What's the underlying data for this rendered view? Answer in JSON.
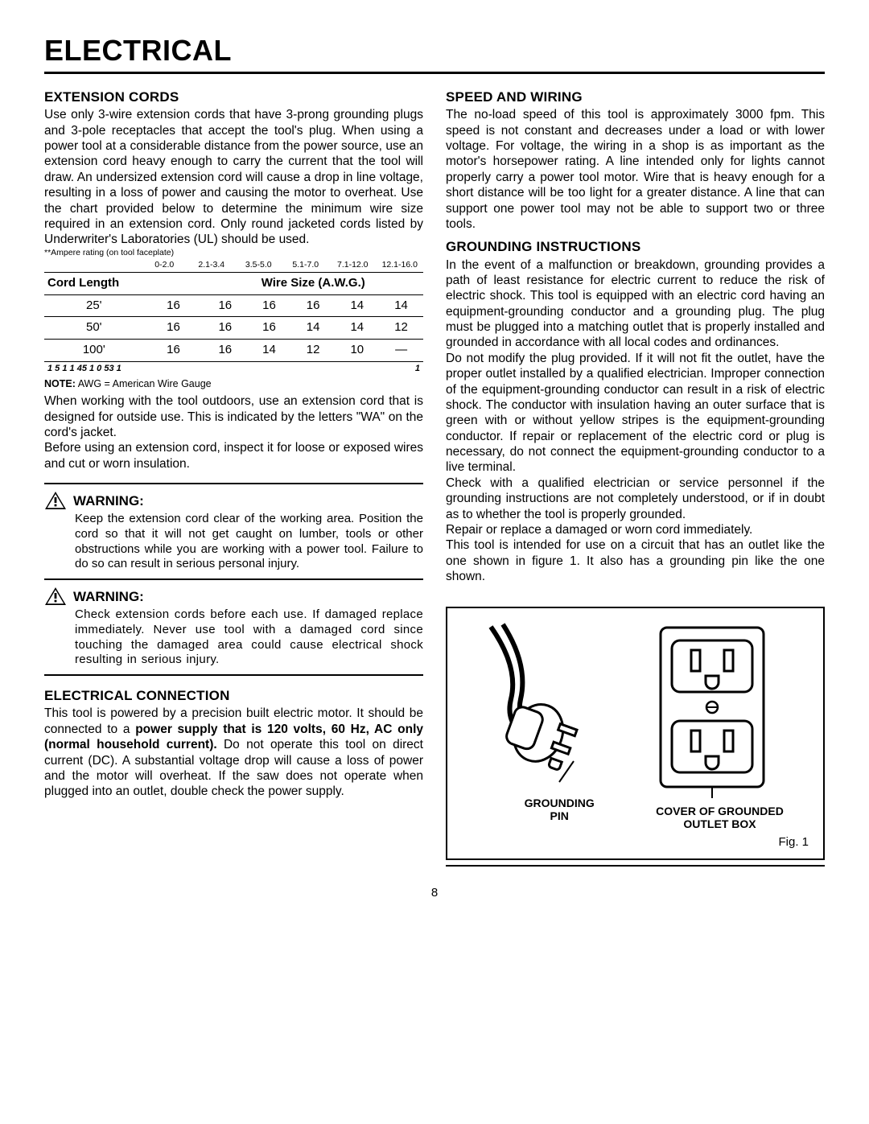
{
  "pageTitle": "ELECTRICAL",
  "pageNumber": "8",
  "left": {
    "extCords": {
      "heading": "EXTENSION CORDS",
      "para1": "Use only 3-wire extension cords that have 3-prong grounding plugs and 3-pole receptacles that accept the tool's plug. When using a power tool at a considerable distance from the power source, use an extension cord heavy enough to carry the current that the tool will draw. An undersized extension cord will cause a drop in line voltage, resulting in a loss of power and causing the motor to overheat. Use the chart provided below to determine the minimum wire size required in an extension cord. Only round jacketed cords listed by Underwriter's Laboratories (UL) should be used.",
      "ampNote": "**Ampere rating  (on tool faceplate)",
      "ampCols": [
        "0-2.0",
        "2.1-3.4",
        "3.5-5.0",
        "5.1-7.0",
        "7.1-12.0",
        "12.1-16.0"
      ],
      "tableHead": {
        "left": "Cord Length",
        "center": "Wire Size (A.W.G.)"
      },
      "rows": [
        {
          "len": "25'",
          "vals": [
            "16",
            "16",
            "16",
            "16",
            "14",
            "14"
          ]
        },
        {
          "len": "50'",
          "vals": [
            "16",
            "16",
            "16",
            "14",
            "14",
            "12"
          ]
        },
        {
          "len": "100'",
          "vals": [
            "16",
            "16",
            "14",
            "12",
            "10",
            "—"
          ]
        }
      ],
      "crypticLeft": "1  5            1     1  45                           1  0   53             1",
      "crypticRight": "1",
      "awgNote": "NOTE: AWG = American Wire Gauge",
      "para2": "When working with the tool outdoors, use an extension cord that is designed for outside use. This is indicated by the letters \"WA\" on the cord's jacket.",
      "para3": "Before using an extension cord, inspect it for loose or exposed wires and cut or worn insulation."
    },
    "warn1": {
      "title": "WARNING:",
      "body": "Keep the extension cord clear of the working area. Position the cord so that it will not get caught on lumber, tools or other obstructions while you are working with a power tool. Failure to do so can result in serious personal injury."
    },
    "warn2": {
      "title": "WARNING:",
      "body": "Check extension cords before each use. If damaged replace immediately. Never use tool with a damaged cord since touching the damaged area could cause electrical shock resulting in serious injury."
    },
    "elecConn": {
      "heading": "ELECTRICAL CONNECTION",
      "pre": "This tool is powered by a precision built electric motor. It should be connected to a ",
      "bold": "power supply that is 120 volts, 60 Hz, AC only (normal household current).",
      "post": " Do not operate this tool on direct current (DC). A substantial voltage drop will cause a loss of power and the motor will overheat. If the saw does not operate when plugged into an outlet, double check the power supply."
    }
  },
  "right": {
    "speed": {
      "heading": "SPEED AND WIRING",
      "para": "The no-load speed of this tool is approximately 3000 fpm. This speed is not constant and decreases under a load or with lower voltage. For voltage, the wiring in a shop is as important as the motor's horsepower rating. A line intended only for lights cannot properly carry a power tool motor. Wire that is heavy enough for a short distance will be too light for a greater distance. A line that can support one power tool may not be able to support two or three tools."
    },
    "ground": {
      "heading": "GROUNDING INSTRUCTIONS",
      "p1": "In the event of a malfunction or breakdown, grounding provides a path of least resistance for electric current to reduce the risk of electric shock. This tool is equipped with an electric cord having an equipment-grounding conductor and a grounding plug. The plug must be plugged into a matching outlet that is properly installed and grounded in accordance with all local codes and ordinances.",
      "p2": "Do not modify the plug provided. If it will not fit the outlet, have the proper outlet installed by a qualified electrician. Improper connection of the equipment-grounding conductor can result in a risk of electric shock. The conductor with insulation having an outer surface that is green with or without yellow stripes is the equipment-grounding conductor. If repair or replacement of the electric cord or plug is necessary, do not connect the equipment-grounding conductor to a live terminal.",
      "p3": "Check with a qualified electrician or service personnel if the grounding instructions are not completely understood, or if in doubt as to whether the tool is properly grounded.",
      "p4": "Repair or replace a damaged or worn cord immediately.",
      "p5": "This tool is intended for use on a circuit that has an outlet like the one shown in figure 1. It also has a grounding pin like the one shown."
    },
    "fig": {
      "label1": "GROUNDING PIN",
      "label2": "COVER OF GROUNDED OUTLET BOX",
      "caption": "Fig. 1"
    }
  }
}
